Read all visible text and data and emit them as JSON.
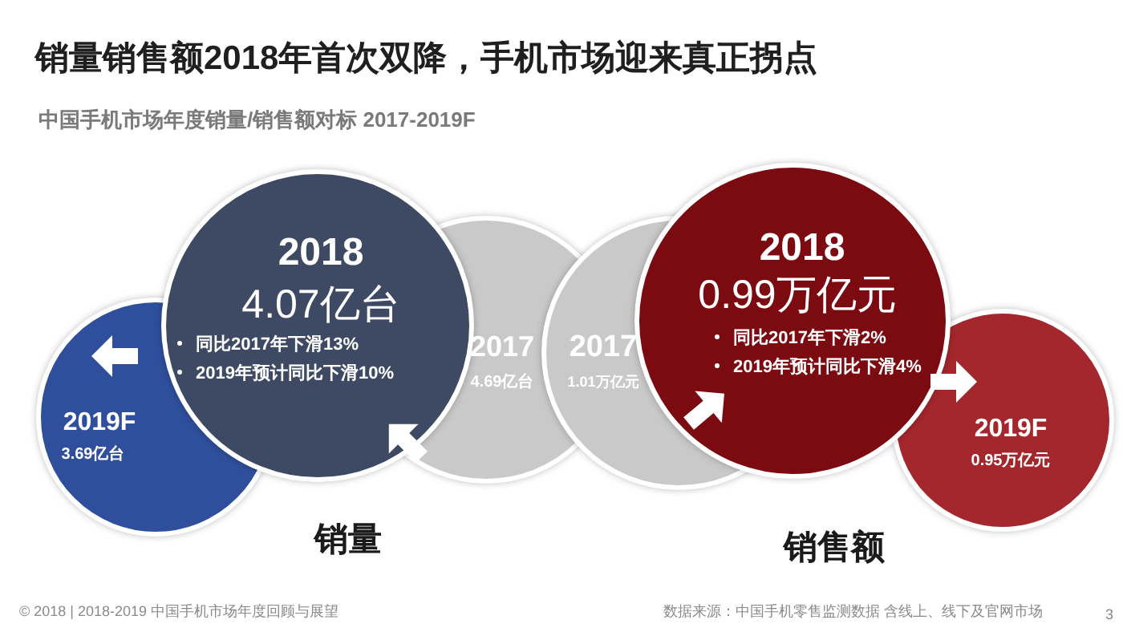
{
  "chart_data": [
    {
      "type": "other",
      "title": "销量销售额2018年首次双降，手机市场迎来真正拐点",
      "subtitle": "中国手机市场年度销量/销售额对标 2017-2019F",
      "xlabel": "销量",
      "categories": [
        "2017",
        "2018",
        "2019F"
      ],
      "values": [
        4.69,
        4.07,
        3.69
      ],
      "value_labels": [
        "4.69亿台",
        "4.07亿台",
        "3.69亿台"
      ],
      "colors": [
        "#c9c9c9",
        "#3e4a63",
        "#2f4f9c"
      ],
      "annotations": [
        "同比2017年下滑13%",
        "2019年预计同比下滑10%",
        "© 2018 | 2018-2019 中国手机市场年度回顾与展望"
      ]
    },
    {
      "type": "other",
      "xlabel": "销售额",
      "categories": [
        "2017",
        "2018",
        "2019F"
      ],
      "values": [
        1.01,
        0.99,
        0.95
      ],
      "value_labels": [
        "1.01万亿元",
        "0.99万亿元",
        "0.95万亿元"
      ],
      "colors": [
        "#c9c9c9",
        "#7b0b11",
        "#a4272d"
      ],
      "annotations": [
        "同比2017年下滑2%",
        "2019年预计同比下滑4%",
        "数据来源：中国手机零售监测数据 含线上、线下及官网市场",
        "3"
      ]
    }
  ]
}
